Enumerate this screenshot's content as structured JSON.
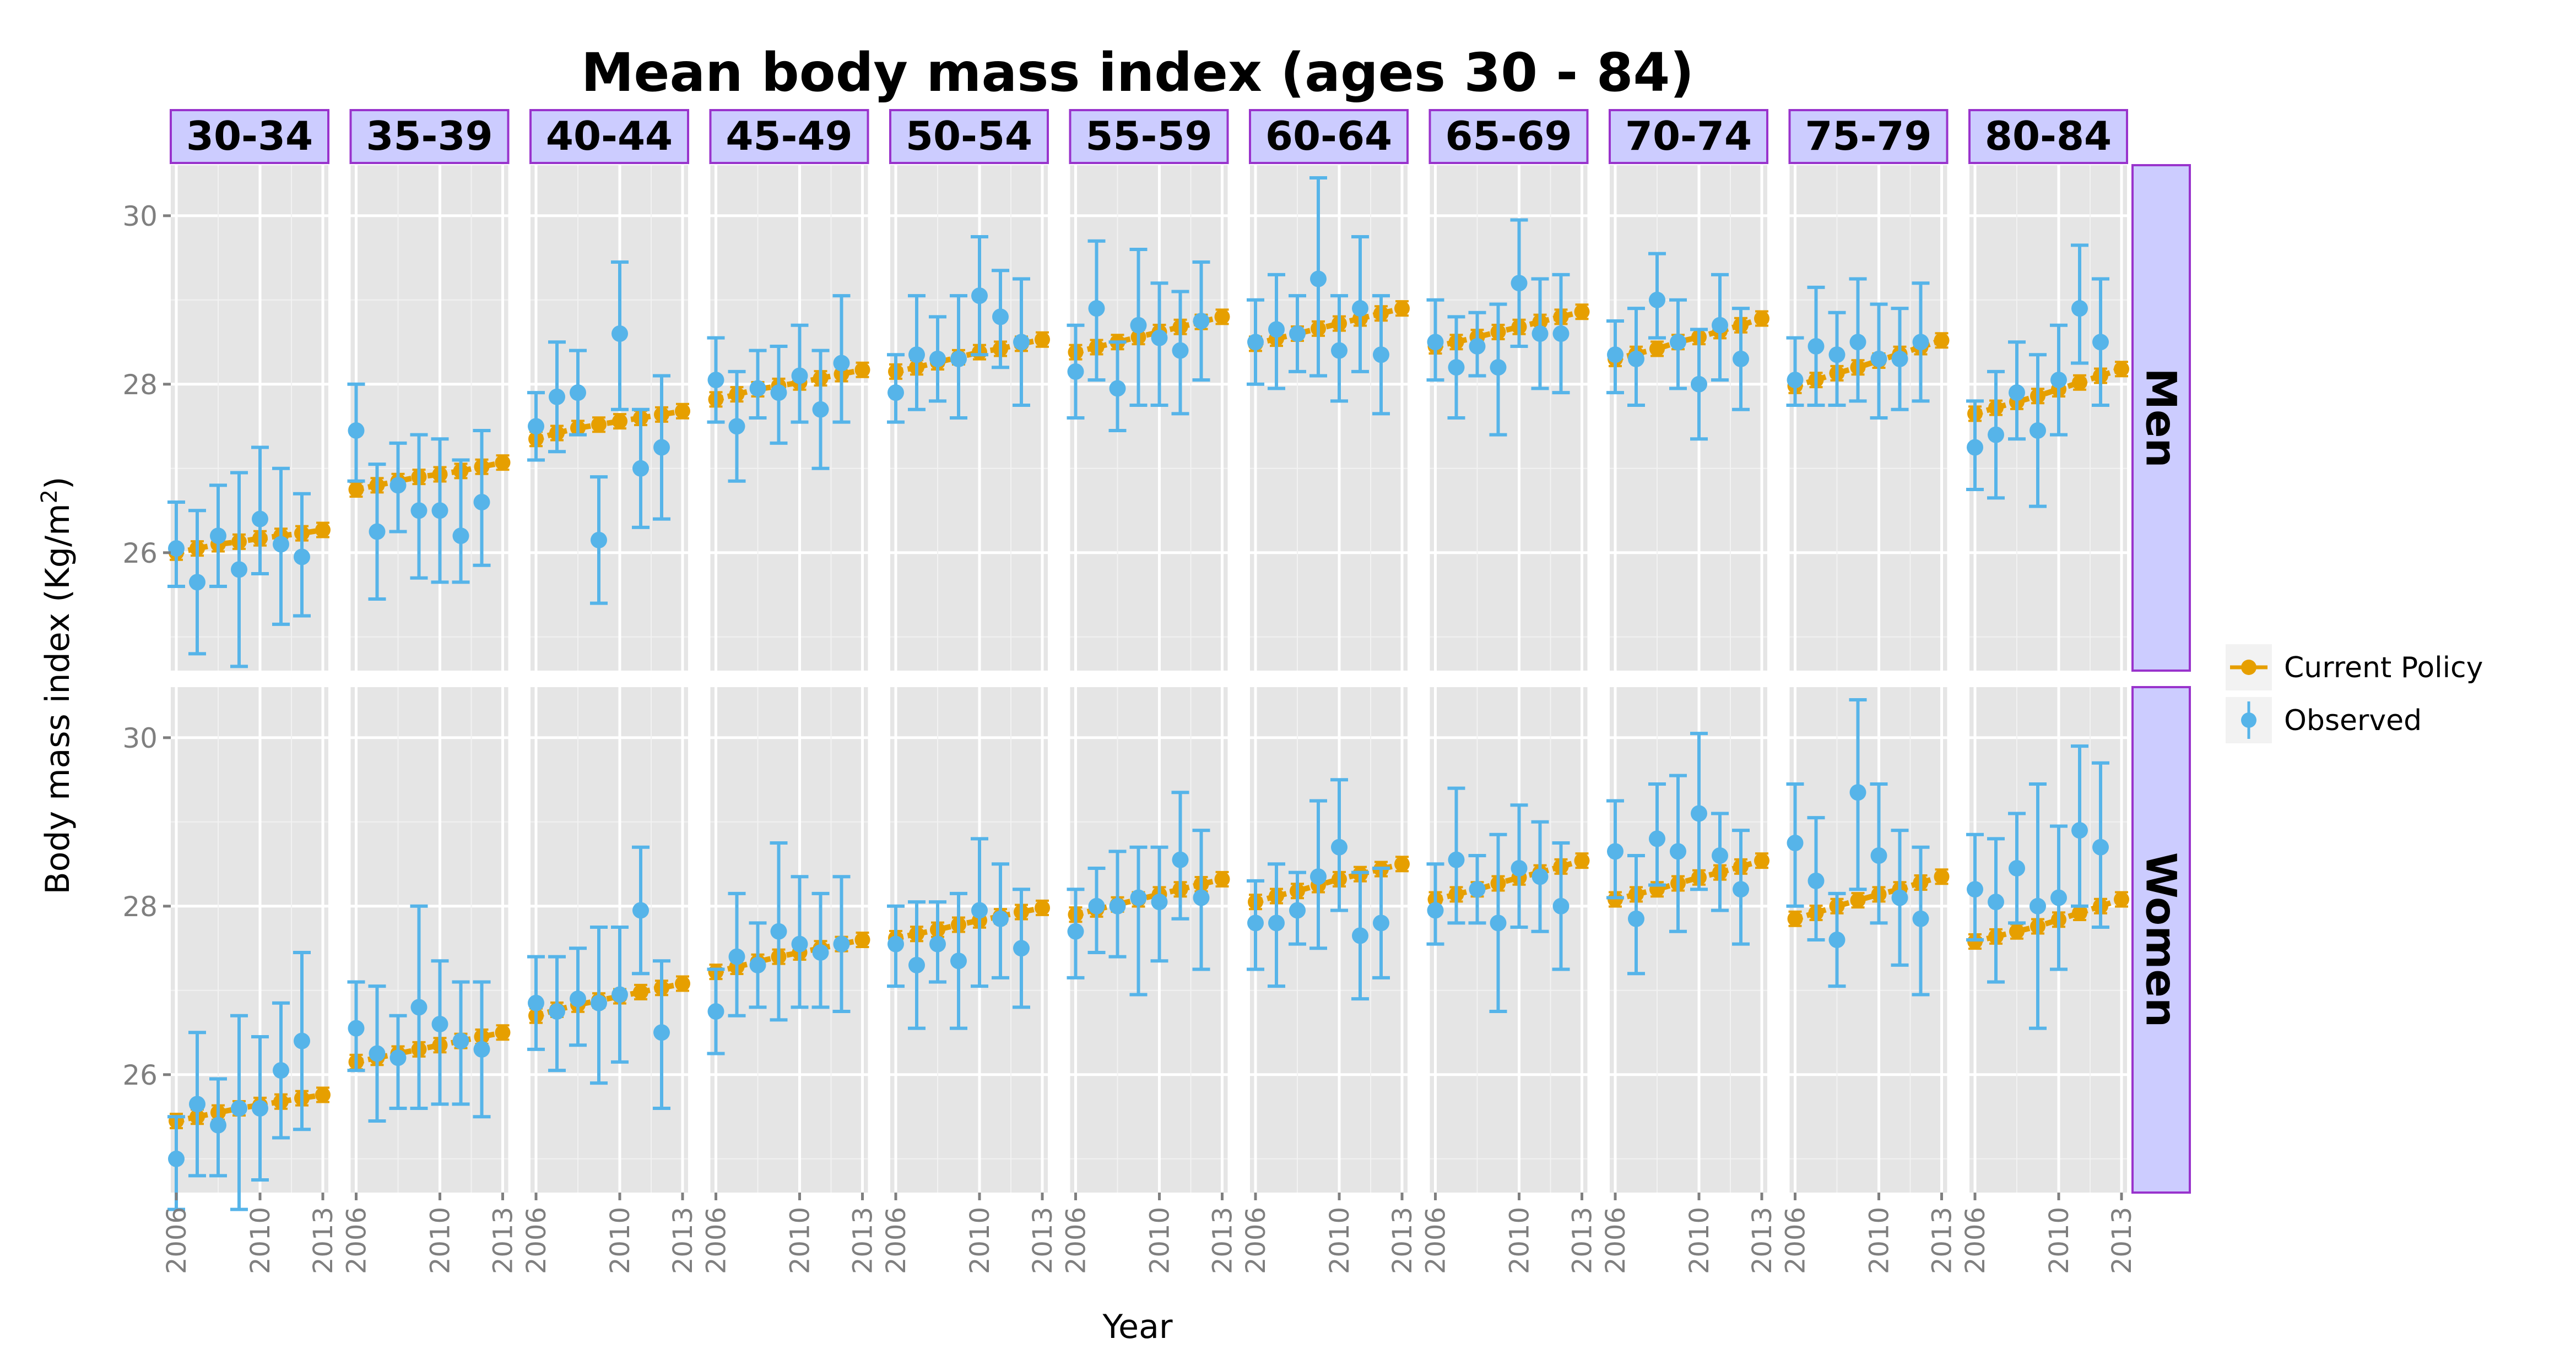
{
  "chart_data": {
    "type": "line",
    "title": "Mean body mass index (ages 30 - 84)",
    "xlabel": "Year",
    "ylabel": "Body mass index (Kg/m²)",
    "x": [
      2006,
      2007,
      2008,
      2009,
      2010,
      2011,
      2012,
      2013
    ],
    "x_ticks": [
      "2006",
      "2010",
      "2013"
    ],
    "ylim": [
      24.6,
      30.6
    ],
    "y_ticks": [
      26,
      28,
      30
    ],
    "grid": true,
    "legend_position": "right",
    "colors": {
      "current_policy": "#E69F00",
      "observed": "#56B4E9",
      "panel_bg": "#E5E5E5",
      "strip_fill": "#CCCCFF",
      "strip_border": "#9933CC"
    },
    "legend": [
      {
        "key": "current_policy",
        "label": "Current Policy"
      },
      {
        "key": "observed",
        "label": "Observed"
      }
    ],
    "age_groups": [
      "30-34",
      "35-39",
      "40-44",
      "45-49",
      "50-54",
      "55-59",
      "60-64",
      "65-69",
      "70-74",
      "75-79",
      "80-84"
    ],
    "sexes": [
      "Men",
      "Women"
    ],
    "panels": [
      {
        "sex": "Men",
        "group": "30-34",
        "policy": [
          26.0,
          26.05,
          26.1,
          26.13,
          26.17,
          26.2,
          26.23,
          26.27
        ],
        "observed": {
          "mean": [
            26.05,
            25.65,
            26.2,
            25.8,
            26.4,
            26.1,
            25.95
          ],
          "lo": [
            25.6,
            24.8,
            25.6,
            24.65,
            25.75,
            25.15,
            25.25
          ],
          "hi": [
            26.6,
            26.5,
            26.8,
            26.95,
            27.25,
            27.0,
            26.7
          ]
        }
      },
      {
        "sex": "Men",
        "group": "35-39",
        "policy": [
          26.75,
          26.8,
          26.85,
          26.9,
          26.93,
          26.97,
          27.02,
          27.07
        ],
        "observed": {
          "mean": [
            27.45,
            26.25,
            26.8,
            26.5,
            26.5,
            26.2,
            26.6
          ],
          "lo": [
            26.85,
            25.45,
            26.25,
            25.7,
            25.65,
            25.65,
            25.85
          ],
          "hi": [
            28.0,
            27.05,
            27.3,
            27.4,
            27.35,
            27.1,
            27.45
          ]
        }
      },
      {
        "sex": "Men",
        "group": "40-44",
        "policy": [
          27.35,
          27.42,
          27.48,
          27.52,
          27.56,
          27.6,
          27.64,
          27.68
        ],
        "observed": {
          "mean": [
            27.5,
            27.85,
            27.9,
            26.15,
            28.6,
            27.0,
            27.25
          ],
          "lo": [
            27.1,
            27.2,
            27.4,
            25.4,
            27.7,
            26.3,
            26.4
          ],
          "hi": [
            27.9,
            28.5,
            28.4,
            26.9,
            29.45,
            27.7,
            28.1
          ]
        }
      },
      {
        "sex": "Men",
        "group": "45-49",
        "policy": [
          27.82,
          27.88,
          27.94,
          27.98,
          28.02,
          28.07,
          28.12,
          28.17
        ],
        "observed": {
          "mean": [
            28.05,
            27.5,
            27.95,
            27.9,
            28.1,
            27.7,
            28.25
          ],
          "lo": [
            27.55,
            26.85,
            27.6,
            27.3,
            27.55,
            27.0,
            27.55
          ],
          "hi": [
            28.55,
            28.15,
            28.4,
            28.45,
            28.7,
            28.4,
            29.05
          ]
        }
      },
      {
        "sex": "Men",
        "group": "50-54",
        "policy": [
          28.15,
          28.2,
          28.26,
          28.32,
          28.38,
          28.42,
          28.48,
          28.53
        ],
        "observed": {
          "mean": [
            27.9,
            28.35,
            28.3,
            28.3,
            29.05,
            28.8,
            28.5
          ],
          "lo": [
            27.55,
            27.7,
            27.8,
            27.6,
            28.35,
            28.2,
            27.75
          ],
          "hi": [
            28.35,
            29.05,
            28.8,
            29.05,
            29.75,
            29.35,
            29.25
          ]
        }
      },
      {
        "sex": "Men",
        "group": "55-59",
        "policy": [
          28.38,
          28.44,
          28.5,
          28.56,
          28.62,
          28.68,
          28.74,
          28.8
        ],
        "observed": {
          "mean": [
            28.15,
            28.9,
            27.95,
            28.7,
            28.55,
            28.4,
            28.75
          ],
          "lo": [
            27.6,
            28.05,
            27.45,
            27.75,
            27.75,
            27.65,
            28.05
          ],
          "hi": [
            28.7,
            29.7,
            28.5,
            29.6,
            29.2,
            29.1,
            29.45
          ]
        }
      },
      {
        "sex": "Men",
        "group": "60-64",
        "policy": [
          28.48,
          28.54,
          28.6,
          28.66,
          28.72,
          28.78,
          28.84,
          28.9
        ],
        "observed": {
          "mean": [
            28.5,
            28.65,
            28.6,
            29.25,
            28.4,
            28.9,
            28.35
          ],
          "lo": [
            28.0,
            27.95,
            28.15,
            28.1,
            27.8,
            28.15,
            27.65
          ],
          "hi": [
            29.0,
            29.3,
            29.05,
            30.45,
            29.05,
            29.75,
            29.05
          ]
        }
      },
      {
        "sex": "Men",
        "group": "65-69",
        "policy": [
          28.45,
          28.5,
          28.56,
          28.62,
          28.68,
          28.74,
          28.8,
          28.86
        ],
        "observed": {
          "mean": [
            28.5,
            28.2,
            28.45,
            28.2,
            29.2,
            28.6,
            28.6
          ],
          "lo": [
            28.05,
            27.6,
            28.1,
            27.4,
            28.45,
            27.95,
            27.9
          ],
          "hi": [
            29.0,
            28.8,
            28.85,
            28.95,
            29.95,
            29.25,
            29.3
          ]
        }
      },
      {
        "sex": "Men",
        "group": "70-74",
        "policy": [
          28.3,
          28.36,
          28.42,
          28.5,
          28.56,
          28.63,
          28.7,
          28.78
        ],
        "observed": {
          "mean": [
            28.35,
            28.3,
            29.0,
            28.5,
            28.0,
            28.7,
            28.3
          ],
          "lo": [
            27.9,
            27.75,
            28.55,
            27.95,
            27.35,
            28.05,
            27.7
          ],
          "hi": [
            28.75,
            28.9,
            29.55,
            29.0,
            28.65,
            29.3,
            28.9
          ]
        }
      },
      {
        "sex": "Men",
        "group": "75-79",
        "policy": [
          27.98,
          28.05,
          28.13,
          28.2,
          28.28,
          28.36,
          28.44,
          28.52
        ],
        "observed": {
          "mean": [
            28.05,
            28.45,
            28.35,
            28.5,
            28.3,
            28.3,
            28.5
          ],
          "lo": [
            27.75,
            27.75,
            27.75,
            27.8,
            27.6,
            27.7,
            27.8
          ],
          "hi": [
            28.55,
            29.15,
            28.85,
            29.25,
            28.95,
            28.9,
            29.2
          ]
        }
      },
      {
        "sex": "Men",
        "group": "80-84",
        "policy": [
          27.65,
          27.72,
          27.79,
          27.86,
          27.94,
          28.02,
          28.1,
          28.18
        ],
        "observed": {
          "mean": [
            27.25,
            27.4,
            27.9,
            27.45,
            28.05,
            28.9,
            28.5
          ],
          "lo": [
            26.75,
            26.65,
            27.35,
            26.55,
            27.4,
            28.25,
            27.75
          ],
          "hi": [
            27.8,
            28.15,
            28.5,
            28.35,
            28.7,
            29.65,
            29.25
          ]
        }
      },
      {
        "sex": "Women",
        "group": "30-34",
        "policy": [
          25.45,
          25.5,
          25.55,
          25.6,
          25.64,
          25.68,
          25.72,
          25.76
        ],
        "observed": {
          "mean": [
            25.0,
            25.65,
            25.4,
            25.6,
            25.6,
            26.05,
            26.4
          ],
          "lo": [
            24.4,
            24.8,
            24.8,
            24.4,
            24.75,
            25.25,
            25.35
          ],
          "hi": [
            25.5,
            26.5,
            25.95,
            26.7,
            26.45,
            26.85,
            27.45
          ]
        }
      },
      {
        "sex": "Women",
        "group": "35-39",
        "policy": [
          26.15,
          26.2,
          26.25,
          26.3,
          26.35,
          26.4,
          26.45,
          26.5
        ],
        "observed": {
          "mean": [
            26.55,
            26.25,
            26.2,
            26.8,
            26.6,
            26.4,
            26.3
          ],
          "lo": [
            26.05,
            25.45,
            25.6,
            25.6,
            25.65,
            25.65,
            25.5
          ],
          "hi": [
            27.1,
            27.05,
            26.7,
            28.0,
            27.35,
            27.1,
            27.1
          ]
        }
      },
      {
        "sex": "Women",
        "group": "40-44",
        "policy": [
          26.7,
          26.77,
          26.83,
          26.88,
          26.93,
          26.98,
          27.03,
          27.08
        ],
        "observed": {
          "mean": [
            26.85,
            26.75,
            26.9,
            26.85,
            26.95,
            27.95,
            26.5
          ],
          "lo": [
            26.3,
            26.05,
            26.35,
            25.9,
            26.15,
            27.2,
            25.6
          ],
          "hi": [
            27.4,
            27.4,
            27.5,
            27.75,
            27.75,
            28.7,
            27.35
          ]
        }
      },
      {
        "sex": "Women",
        "group": "45-49",
        "policy": [
          27.22,
          27.28,
          27.34,
          27.4,
          27.45,
          27.5,
          27.55,
          27.6
        ],
        "observed": {
          "mean": [
            26.75,
            27.4,
            27.3,
            27.7,
            27.55,
            27.45,
            27.55
          ],
          "lo": [
            26.25,
            26.7,
            26.8,
            26.65,
            26.8,
            26.8,
            26.75
          ],
          "hi": [
            27.25,
            28.15,
            27.8,
            28.75,
            28.35,
            28.15,
            28.35
          ]
        }
      },
      {
        "sex": "Women",
        "group": "50-54",
        "policy": [
          27.62,
          27.67,
          27.72,
          27.78,
          27.83,
          27.88,
          27.93,
          27.98
        ],
        "observed": {
          "mean": [
            27.55,
            27.3,
            27.55,
            27.35,
            27.95,
            27.85,
            27.5
          ],
          "lo": [
            27.05,
            26.55,
            27.1,
            26.55,
            27.05,
            27.15,
            26.8
          ],
          "hi": [
            28.0,
            28.05,
            28.05,
            28.15,
            28.8,
            28.5,
            28.2
          ]
        }
      },
      {
        "sex": "Women",
        "group": "55-59",
        "policy": [
          27.9,
          27.96,
          28.02,
          28.08,
          28.14,
          28.2,
          28.26,
          28.32
        ],
        "observed": {
          "mean": [
            27.7,
            28.0,
            28.0,
            28.1,
            28.05,
            28.55,
            28.1
          ],
          "lo": [
            27.15,
            27.45,
            27.4,
            26.95,
            27.35,
            27.85,
            27.25
          ],
          "hi": [
            28.2,
            28.45,
            28.65,
            28.7,
            28.7,
            29.35,
            28.9
          ]
        }
      },
      {
        "sex": "Women",
        "group": "60-64",
        "policy": [
          28.05,
          28.12,
          28.18,
          28.25,
          28.32,
          28.38,
          28.44,
          28.5
        ],
        "observed": {
          "mean": [
            27.8,
            27.8,
            27.95,
            28.35,
            28.7,
            27.65,
            27.8
          ],
          "lo": [
            27.25,
            27.05,
            27.55,
            27.5,
            27.95,
            26.9,
            27.15
          ],
          "hi": [
            28.3,
            28.5,
            28.4,
            29.25,
            29.5,
            28.4,
            28.45
          ]
        }
      },
      {
        "sex": "Women",
        "group": "65-69",
        "policy": [
          28.08,
          28.14,
          28.2,
          28.27,
          28.34,
          28.4,
          28.47,
          28.54
        ],
        "observed": {
          "mean": [
            27.95,
            28.55,
            28.2,
            27.8,
            28.45,
            28.35,
            28.0
          ],
          "lo": [
            27.55,
            27.8,
            27.8,
            26.75,
            27.75,
            27.7,
            27.25
          ],
          "hi": [
            28.5,
            29.4,
            28.6,
            28.85,
            29.2,
            29.0,
            28.75
          ]
        }
      },
      {
        "sex": "Women",
        "group": "70-74",
        "policy": [
          28.08,
          28.14,
          28.2,
          28.27,
          28.34,
          28.4,
          28.47,
          28.54
        ],
        "observed": {
          "mean": [
            28.65,
            27.85,
            28.8,
            28.65,
            29.1,
            28.6,
            28.2
          ],
          "lo": [
            28.1,
            27.2,
            28.25,
            27.7,
            28.2,
            27.95,
            27.55
          ],
          "hi": [
            29.25,
            28.6,
            29.45,
            29.55,
            30.05,
            29.1,
            28.9
          ]
        }
      },
      {
        "sex": "Women",
        "group": "75-79",
        "policy": [
          27.85,
          27.92,
          28.0,
          28.07,
          28.14,
          28.2,
          28.28,
          28.35
        ],
        "observed": {
          "mean": [
            28.75,
            28.3,
            27.6,
            29.35,
            28.6,
            28.1,
            27.85
          ],
          "lo": [
            28.0,
            27.6,
            27.05,
            28.2,
            27.8,
            27.3,
            26.95
          ],
          "hi": [
            29.45,
            29.05,
            28.15,
            30.45,
            29.45,
            28.9,
            28.7
          ]
        }
      },
      {
        "sex": "Women",
        "group": "80-84",
        "policy": [
          27.58,
          27.64,
          27.7,
          27.76,
          27.84,
          27.92,
          28.0,
          28.08
        ],
        "observed": {
          "mean": [
            28.2,
            28.05,
            28.45,
            28.0,
            28.1,
            28.9,
            28.7
          ],
          "lo": [
            27.6,
            27.1,
            27.8,
            26.55,
            27.25,
            28.0,
            27.75
          ],
          "hi": [
            28.85,
            28.8,
            29.1,
            29.45,
            28.95,
            29.9,
            29.7
          ]
        }
      }
    ]
  }
}
